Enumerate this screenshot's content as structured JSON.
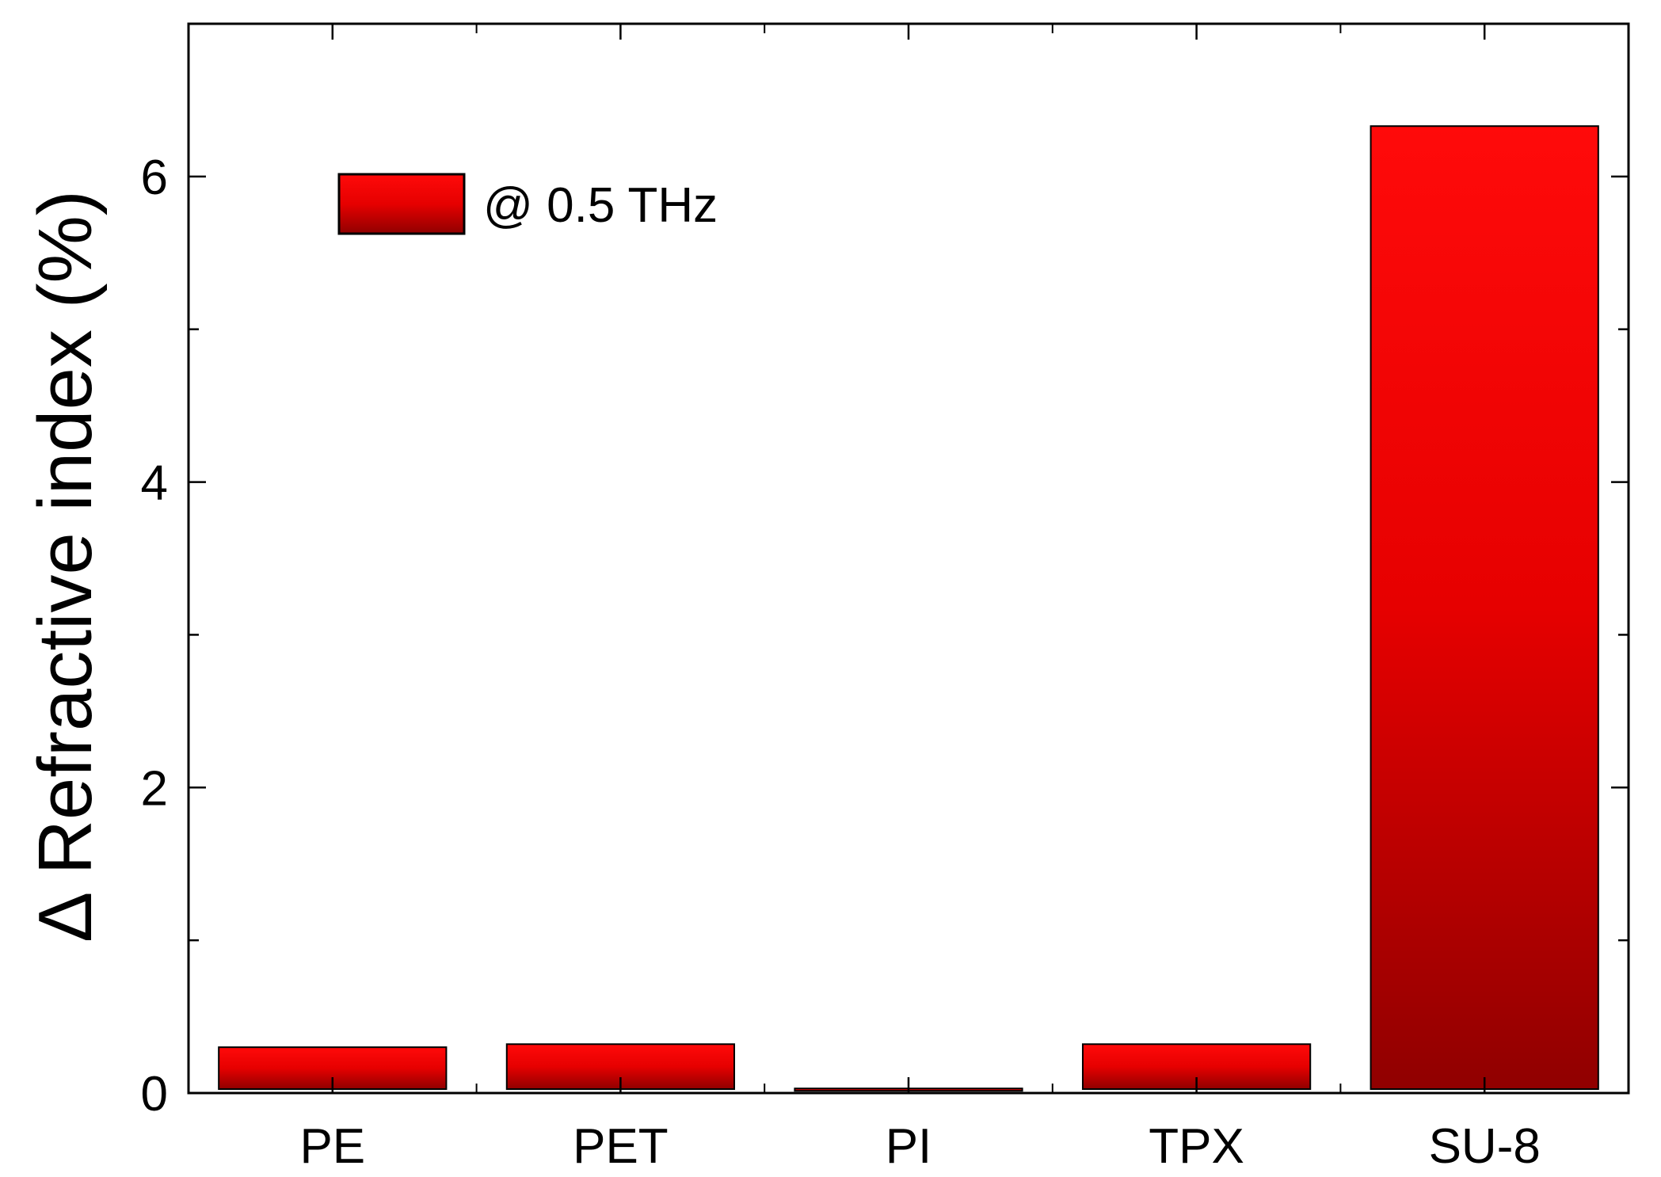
{
  "chart_data": {
    "type": "bar",
    "categories": [
      "PE",
      "PET",
      "PI",
      "TPX",
      "SU-8"
    ],
    "values": [
      0.3,
      0.32,
      0.03,
      0.32,
      6.33
    ],
    "ylabel": "Δ Refractive index (%)",
    "xlabel": "",
    "ylim": [
      0,
      7
    ],
    "yticks": [
      0,
      2,
      4,
      6
    ],
    "grid": false,
    "legend": {
      "label": "@ 0.5 THz",
      "placement": "top-left"
    },
    "colors": {
      "bar_top": "#ff0a0a",
      "bar_mid": "#e60000",
      "bar_bottom": "#900000",
      "bar_edge": "#000000"
    }
  }
}
